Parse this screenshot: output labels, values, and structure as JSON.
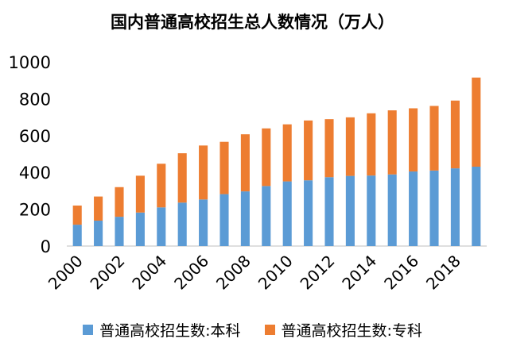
{
  "chart_data": {
    "type": "bar",
    "stacked": true,
    "title": "国内普通高校招生总人数情况（万人）",
    "xlabel": "",
    "ylabel": "",
    "ylim": [
      0,
      1000
    ],
    "yticks": [
      0,
      200,
      400,
      600,
      800,
      1000
    ],
    "categories": [
      "2000",
      "2001",
      "2002",
      "2003",
      "2004",
      "2005",
      "2006",
      "2007",
      "2008",
      "2009",
      "2010",
      "2011",
      "2012",
      "2013",
      "2014",
      "2015",
      "2016",
      "2017",
      "2018",
      "2019"
    ],
    "xtick_labels": [
      "2000",
      "2002",
      "2004",
      "2006",
      "2008",
      "2010",
      "2012",
      "2014",
      "2016",
      "2018"
    ],
    "series": [
      {
        "name": "普通高校招生数:本科",
        "color": "#5B9BD5",
        "values": [
          116,
          138,
          159,
          182,
          210,
          236,
          253,
          282,
          297,
          326,
          351,
          357,
          374,
          381,
          383,
          389,
          405,
          410,
          422,
          431
        ]
      },
      {
        "name": "普通高校招生数:专科",
        "color": "#ED7D31",
        "values": [
          104,
          131,
          161,
          200,
          237,
          268,
          293,
          284,
          310,
          313,
          310,
          325,
          315,
          318,
          338,
          348,
          343,
          351,
          368,
          484
        ]
      }
    ]
  }
}
